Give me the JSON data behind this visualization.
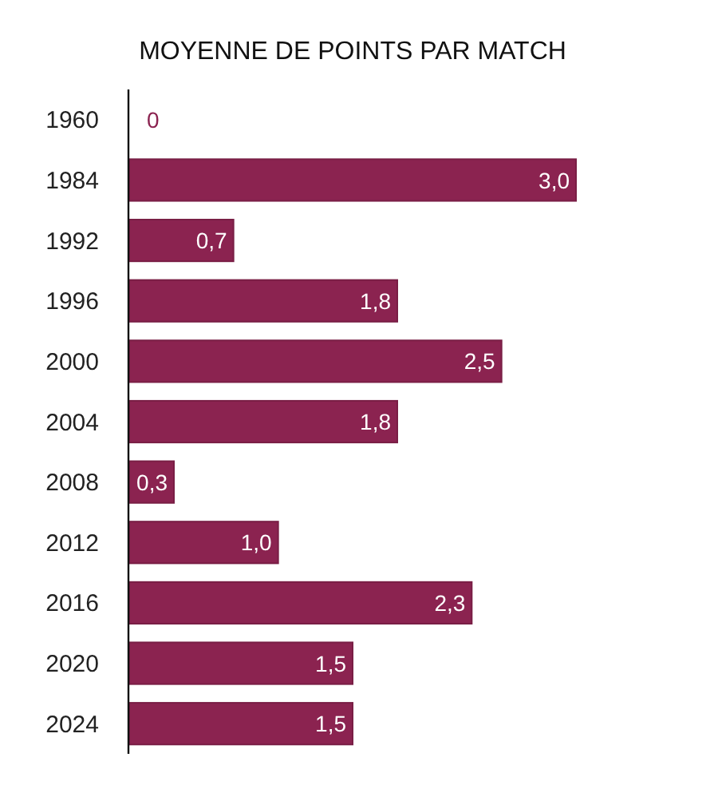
{
  "chart_data": {
    "type": "bar",
    "orientation": "horizontal",
    "title": "MOYENNE DE POINTS PAR MATCH",
    "categories": [
      "1960",
      "1984",
      "1992",
      "1996",
      "2000",
      "2004",
      "2008",
      "2012",
      "2016",
      "2020",
      "2024"
    ],
    "values": [
      0,
      3.0,
      0.7,
      1.8,
      2.5,
      1.8,
      0.3,
      1.0,
      2.3,
      1.5,
      1.5
    ],
    "value_labels": [
      "0",
      "3,0",
      "0,7",
      "1,8",
      "2,5",
      "1,8",
      "0,3",
      "1,0",
      "2,3",
      "1,5",
      "1,5"
    ],
    "color": "#8b2350"
  }
}
